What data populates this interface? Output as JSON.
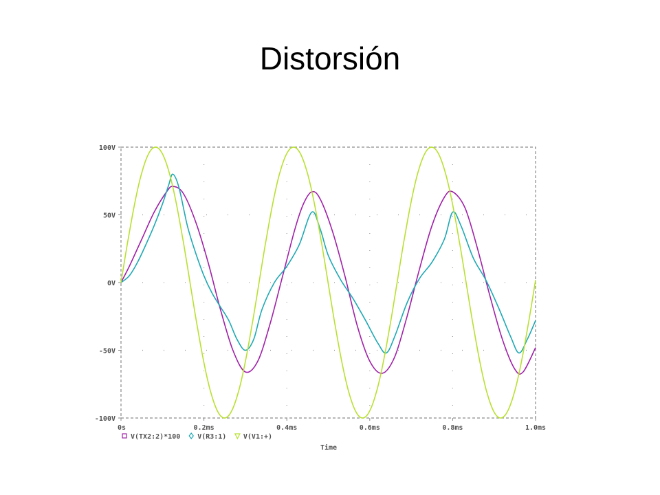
{
  "slide": {
    "title": "Distorsión"
  },
  "chart_data": {
    "type": "line",
    "xlabel": "Time",
    "ylabel": "",
    "xlim": [
      0,
      1.0
    ],
    "ylim": [
      -100,
      100
    ],
    "x_ticks": [
      0,
      0.2,
      0.4,
      0.6,
      0.8,
      1.0
    ],
    "x_tick_labels": [
      "0s",
      "0.2ms",
      "0.4ms",
      "0.6ms",
      "0.8ms",
      "1.0ms"
    ],
    "y_ticks": [
      100,
      50,
      0,
      -50,
      -100
    ],
    "y_tick_labels": [
      "100V",
      "50V",
      "0V",
      "-50V",
      "-100V"
    ],
    "grid": "dotted",
    "legend_position": "bottom-left",
    "series": [
      {
        "name": "V(TX2:2)*100",
        "color": "#a020a8",
        "marker": "square",
        "x": [
          0,
          0.02,
          0.05,
          0.08,
          0.11,
          0.125,
          0.15,
          0.18,
          0.21,
          0.24,
          0.27,
          0.3,
          0.33,
          0.36,
          0.39,
          0.42,
          0.44,
          0.46,
          0.48,
          0.51,
          0.54,
          0.57,
          0.6,
          0.63,
          0.66,
          0.69,
          0.72,
          0.75,
          0.78,
          0.8,
          0.83,
          0.86,
          0.89,
          0.92,
          0.95,
          0.97,
          1.0
        ],
        "y": [
          0,
          12,
          32,
          52,
          67,
          71,
          66,
          45,
          15,
          -20,
          -50,
          -66,
          -58,
          -30,
          5,
          40,
          58,
          67,
          62,
          38,
          5,
          -32,
          -58,
          -67,
          -55,
          -25,
          10,
          42,
          63,
          67,
          55,
          25,
          -10,
          -42,
          -64,
          -66,
          -48
        ]
      },
      {
        "name": "V(R3:1)",
        "color": "#1ea8b4",
        "marker": "diamond",
        "x": [
          0,
          0.02,
          0.04,
          0.06,
          0.08,
          0.1,
          0.115,
          0.125,
          0.14,
          0.16,
          0.18,
          0.2,
          0.22,
          0.24,
          0.26,
          0.28,
          0.3,
          0.32,
          0.34,
          0.37,
          0.4,
          0.43,
          0.46,
          0.48,
          0.5,
          0.53,
          0.56,
          0.59,
          0.62,
          0.64,
          0.66,
          0.69,
          0.72,
          0.75,
          0.78,
          0.8,
          0.82,
          0.85,
          0.88,
          0.91,
          0.94,
          0.96,
          0.98,
          1.0
        ],
        "y": [
          0,
          5,
          15,
          28,
          42,
          58,
          72,
          80,
          70,
          42,
          22,
          5,
          -8,
          -18,
          -28,
          -42,
          -50,
          -42,
          -20,
          0,
          12,
          28,
          52,
          40,
          20,
          2,
          -12,
          -28,
          -45,
          -52,
          -40,
          -15,
          3,
          15,
          32,
          52,
          42,
          18,
          2,
          -18,
          -40,
          -52,
          -42,
          -28
        ]
      },
      {
        "name": "V(V1:+)",
        "color": "#b8e030",
        "marker": "triangle-down",
        "x_period": 0.333,
        "amplitude": 100,
        "waveform": "sine",
        "x": [
          0,
          0.0833,
          0.1667,
          0.25,
          0.333,
          0.4167,
          0.5,
          0.5833,
          0.667,
          0.75,
          0.8333,
          0.9167,
          1.0
        ],
        "y": [
          0,
          100,
          0,
          -100,
          0,
          100,
          0,
          -100,
          0,
          100,
          0,
          -100,
          0
        ]
      }
    ]
  }
}
